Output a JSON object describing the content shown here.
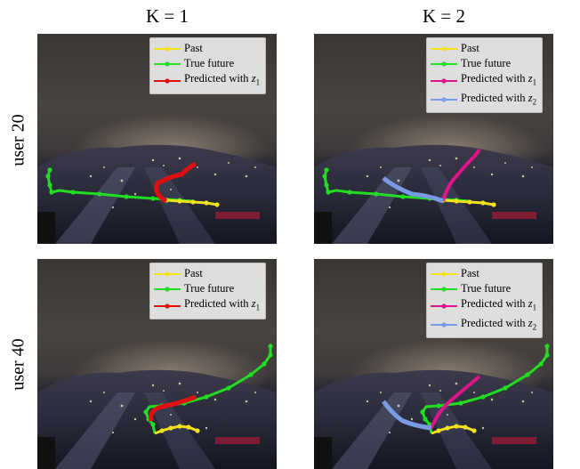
{
  "columns": [
    {
      "title": "K = 1"
    },
    {
      "title": "K = 2"
    }
  ],
  "rows": [
    {
      "label": "user 20"
    },
    {
      "label": "user 40"
    }
  ],
  "legend": {
    "past": "Past",
    "true_future": "True future",
    "predicted_prefix": "Predicted with ",
    "z_symbol": "z",
    "z1_subscript": "1",
    "z2_subscript": "2"
  },
  "colors": {
    "past": "#f2e21c",
    "true_future": "#22dd22",
    "pred_k1": "#e01010",
    "pred_z1": "#e0148c",
    "pred_z2": "#7a9ae6"
  }
}
